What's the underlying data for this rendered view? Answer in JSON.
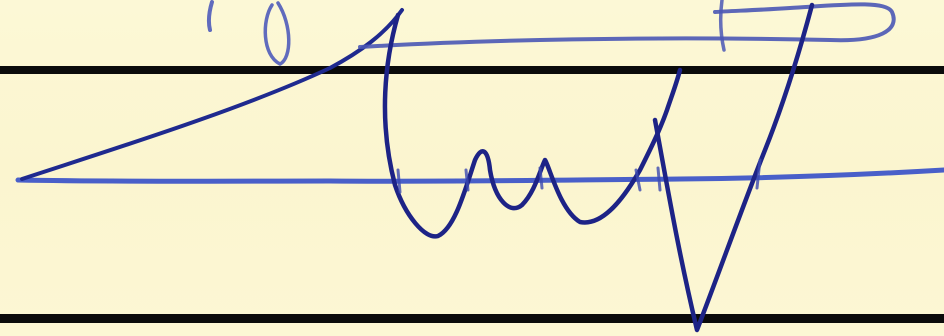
{
  "document": {
    "kind": "handwritten signature on ruled paper",
    "paper_color": "#fbf6d2",
    "rule_color": "#0b0b0b",
    "ink_color": "#2a2f9e",
    "baseline_color": "#3f56c8"
  }
}
